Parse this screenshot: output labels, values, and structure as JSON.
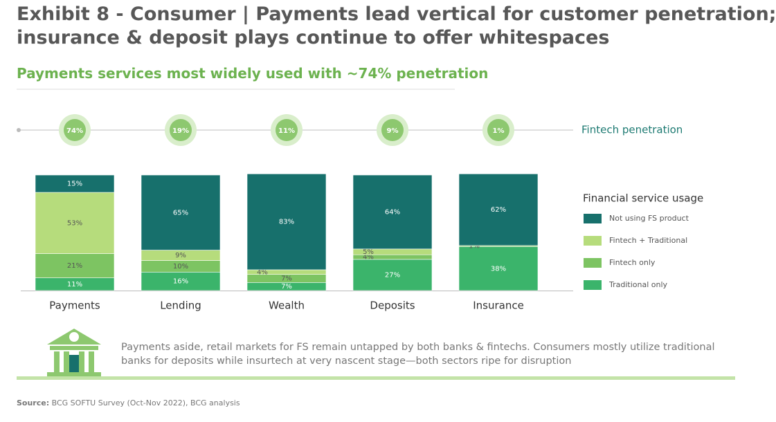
{
  "header": {
    "title": [
      "Exhibit 8 - Consumer | Payments lead vertical for customer penetration;",
      "insurance & deposit plays continue to offer whitespaces"
    ],
    "subtitle": "Payments services most widely used with ~74% penetration"
  },
  "chart_data": {
    "type": "bar",
    "stacked": true,
    "categories": [
      "Payments",
      "Lending",
      "Wealth",
      "Deposits",
      "Insurance"
    ],
    "penetration": {
      "label": "Fintech penetration",
      "color": "#8dc86f",
      "values": [
        74,
        19,
        11,
        9,
        1
      ],
      "value_labels": [
        "74%",
        "19%",
        "11%",
        "9%",
        "1%"
      ]
    },
    "legend_title": "Financial service usage",
    "series": [
      {
        "name": "Not using FS product",
        "color": "#17706c",
        "values": [
          15,
          65,
          83,
          64,
          62
        ],
        "value_labels": [
          "15%",
          "65%",
          "83%",
          "64%",
          "62%"
        ]
      },
      {
        "name": "Fintech + Traditional",
        "color": "#b6dc7c",
        "values": [
          53,
          9,
          4,
          5,
          null
        ],
        "value_labels": [
          "53%",
          "9%",
          "4%",
          "5%",
          null
        ]
      },
      {
        "name": "Fintech only",
        "color": "#7dc462",
        "values": [
          21,
          10,
          7,
          4,
          1
        ],
        "value_labels": [
          "21%",
          "10%",
          "7%",
          "4%",
          "1%"
        ]
      },
      {
        "name": "Traditional only",
        "color": "#3bb46b",
        "values": [
          11,
          16,
          7,
          27,
          38
        ],
        "value_labels": [
          "11%",
          "16%",
          "7%",
          "27%",
          "38%"
        ]
      }
    ]
  },
  "note": "Payments aside, retail markets for FS remain untapped by both banks & fintechs. Consumers mostly utilize traditional banks for deposits while insurtech at very nascent stage—both sectors ripe for disruption",
  "source": {
    "label": "Source:",
    "text": "BCG SOFTU Survey (Oct-Nov 2022), BCG analysis"
  }
}
